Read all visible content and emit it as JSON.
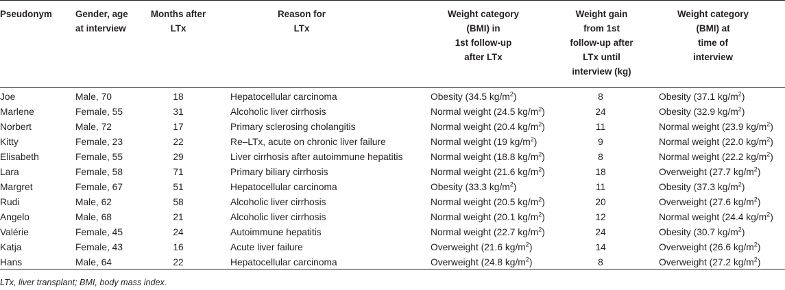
{
  "table": {
    "headers": {
      "pseudonym": [
        "Pseudonym"
      ],
      "gender_age": [
        "Gender, age",
        "at interview"
      ],
      "months": [
        "Months after",
        "LTx"
      ],
      "reason": [
        "Reason for",
        "LTx"
      ],
      "weight_first": [
        "Weight category",
        "(BMI) in",
        "1st follow-up",
        "after LTx"
      ],
      "weight_gain": [
        "Weight gain",
        "from 1st",
        "follow-up after",
        "LTx until",
        "interview (kg)"
      ],
      "weight_interview": [
        "Weight category",
        "(BMI) at",
        "time of",
        "interview"
      ]
    },
    "unit_superscript": "2",
    "rows": [
      {
        "name": "Joe",
        "gender": "Male, 70",
        "months": "18",
        "reason": "Hepatocellular carcinoma",
        "wt1": "Obesity (34.5 kg/m",
        "gain": "8",
        "wt2": "Obesity (37.1 kg/m"
      },
      {
        "name": "Marlene",
        "gender": "Female, 55",
        "months": "31",
        "reason": "Alcoholic liver cirrhosis",
        "wt1": "Normal weight (24.5 kg/m",
        "gain": "24",
        "wt2": "Obesity (32.9 kg/m"
      },
      {
        "name": "Norbert",
        "gender": "Male, 72",
        "months": "17",
        "reason": "Primary sclerosing cholangitis",
        "wt1": "Normal weight (20.4 kg/m",
        "gain": "11",
        "wt2": "Normal weight (23.9 kg/m"
      },
      {
        "name": "Kitty",
        "gender": "Female, 23",
        "months": "22",
        "reason": "Re–LTx, acute on chronic liver failure",
        "wt1": "Normal weight (19 kg/m",
        "gain": "9",
        "wt2": "Normal weight (22.0 kg/m"
      },
      {
        "name": "Elisabeth",
        "gender": "Female, 55",
        "months": "29",
        "reason": "Liver cirrhosis after autoimmune hepatitis",
        "wt1": "Normal weight (18.8 kg/m",
        "gain": "8",
        "wt2": "Normal weight (22.2 kg/m"
      },
      {
        "name": "Lara",
        "gender": "Female, 58",
        "months": "71",
        "reason": "Primary biliary cirrhosis",
        "wt1": "Normal weight (21.6 kg/m",
        "gain": "18",
        "wt2": "Overweight (27.7 kg/m"
      },
      {
        "name": "Margret",
        "gender": "Female, 67",
        "months": "51",
        "reason": "Hepatocellular carcinoma",
        "wt1": "Obesity (33.3 kg/m",
        "gain": "11",
        "wt2": "Obesity (37.3 kg/m"
      },
      {
        "name": "Rudi",
        "gender": "Male, 62",
        "months": "58",
        "reason": "Alcoholic liver cirrhosis",
        "wt1": "Normal weight (20.5 kg/m",
        "gain": "20",
        "wt2": "Overweight (27.6 kg/m"
      },
      {
        "name": "Angelo",
        "gender": "Male, 68",
        "months": "21",
        "reason": "Alcoholic liver cirrhosis",
        "wt1": "Normal weight (20.1 kg/m",
        "gain": "12",
        "wt2": "Normal weight (24.4 kg/m"
      },
      {
        "name": "Valérie",
        "gender": "Female, 45",
        "months": "24",
        "reason": "Autoimmune hepatitis",
        "wt1": "Normal weight (22.7 kg/m",
        "gain": "24",
        "wt2": "Obesity (30.7 kg/m"
      },
      {
        "name": "Katja",
        "gender": "Female, 43",
        "months": "16",
        "reason": "Acute liver failure",
        "wt1": "Overweight (21.6 kg/m",
        "gain": "14",
        "wt2": "Overweight (26.6 kg/m"
      },
      {
        "name": "Hans",
        "gender": "Male, 64",
        "months": "22",
        "reason": "Hepatocellular carcinoma",
        "wt1": "Overweight (24.8 kg/m",
        "gain": "8",
        "wt2": "Overweight (27.2 kg/m"
      }
    ],
    "footnote": "LTx, liver transplant; BMI, body mass index."
  }
}
